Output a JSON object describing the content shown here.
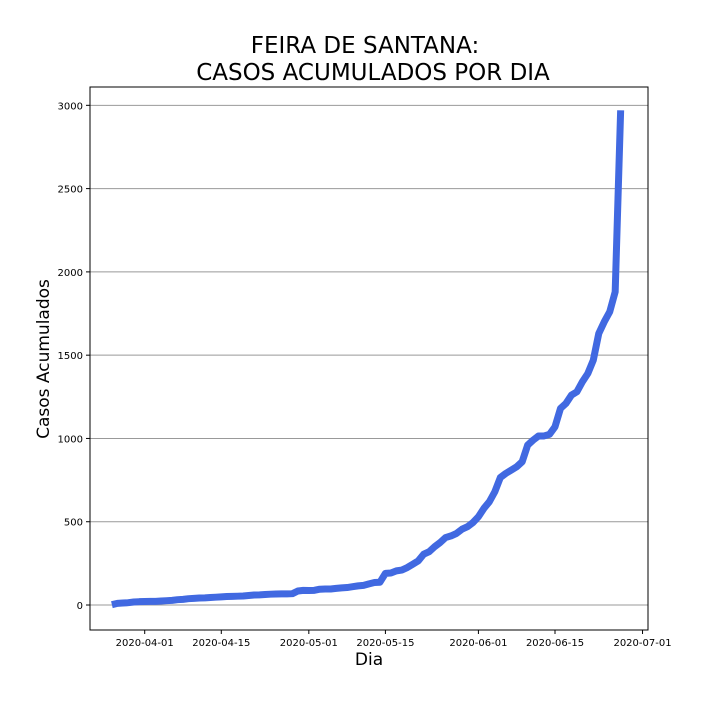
{
  "chart_data": {
    "type": "line",
    "title": [
      "FEIRA DE SANTANA:",
      "CASOS ACUMULADOS POR DIA"
    ],
    "x_label": "Dia",
    "y_label": "Casos Acumulados",
    "x": [
      "2020-03-26",
      "2020-03-27",
      "2020-03-28",
      "2020-03-29",
      "2020-03-30",
      "2020-03-31",
      "2020-04-01",
      "2020-04-02",
      "2020-04-03",
      "2020-04-04",
      "2020-04-05",
      "2020-04-06",
      "2020-04-07",
      "2020-04-08",
      "2020-04-09",
      "2020-04-10",
      "2020-04-11",
      "2020-04-12",
      "2020-04-13",
      "2020-04-14",
      "2020-04-15",
      "2020-04-16",
      "2020-04-17",
      "2020-04-18",
      "2020-04-19",
      "2020-04-20",
      "2020-04-21",
      "2020-04-22",
      "2020-04-23",
      "2020-04-24",
      "2020-04-25",
      "2020-04-26",
      "2020-04-27",
      "2020-04-28",
      "2020-04-29",
      "2020-04-30",
      "2020-05-01",
      "2020-05-02",
      "2020-05-03",
      "2020-05-04",
      "2020-05-05",
      "2020-05-06",
      "2020-05-07",
      "2020-05-08",
      "2020-05-09",
      "2020-05-10",
      "2020-05-11",
      "2020-05-12",
      "2020-05-13",
      "2020-05-14",
      "2020-05-15",
      "2020-05-16",
      "2020-05-17",
      "2020-05-18",
      "2020-05-19",
      "2020-05-20",
      "2020-05-21",
      "2020-05-22",
      "2020-05-23",
      "2020-05-24",
      "2020-05-25",
      "2020-05-26",
      "2020-05-27",
      "2020-05-28",
      "2020-05-29",
      "2020-05-30",
      "2020-05-31",
      "2020-06-01",
      "2020-06-02",
      "2020-06-03",
      "2020-06-04",
      "2020-06-05",
      "2020-06-06",
      "2020-06-07",
      "2020-06-08",
      "2020-06-09",
      "2020-06-10",
      "2020-06-11",
      "2020-06-12",
      "2020-06-13",
      "2020-06-14",
      "2020-06-15",
      "2020-06-16",
      "2020-06-17",
      "2020-06-18",
      "2020-06-19",
      "2020-06-20",
      "2020-06-21",
      "2020-06-22",
      "2020-06-23",
      "2020-06-24",
      "2020-06-25",
      "2020-06-26",
      "2020-06-27"
    ],
    "series": [
      {
        "color": "#4169e1",
        "values": [
          2,
          10,
          12,
          14,
          18,
          20,
          21,
          22,
          22,
          24,
          26,
          28,
          32,
          34,
          38,
          40,
          42,
          43,
          45,
          47,
          49,
          51,
          52,
          53,
          54,
          57,
          60,
          61,
          63,
          65,
          66,
          67,
          67,
          68,
          84,
          88,
          87,
          88,
          95,
          96,
          96,
          100,
          103,
          105,
          110,
          115,
          118,
          127,
          135,
          137,
          190,
          192,
          205,
          210,
          225,
          245,
          265,
          305,
          320,
          350,
          375,
          405,
          415,
          430,
          455,
          470,
          495,
          530,
          580,
          620,
          680,
          765,
          790,
          810,
          830,
          860,
          960,
          990,
          1015,
          1015,
          1025,
          1070,
          1180,
          1210,
          1260,
          1280,
          1340,
          1390,
          1470,
          1630,
          1700,
          1760,
          1880,
          2970
        ]
      }
    ],
    "xlim": [
      "2020-03-22",
      "2020-07-02"
    ],
    "xticks": [
      "2020-04-01",
      "2020-04-15",
      "2020-05-01",
      "2020-05-15",
      "2020-06-01",
      "2020-06-15",
      "2020-07-01"
    ],
    "ylim": [
      -150,
      3110
    ],
    "yticks": [
      0,
      500,
      1000,
      1500,
      2000,
      2500,
      3000
    ],
    "grid": true
  }
}
